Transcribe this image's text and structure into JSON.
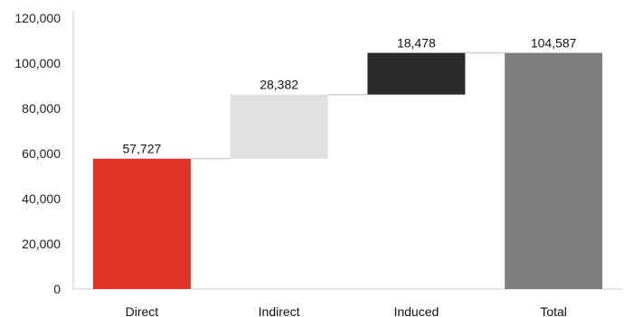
{
  "chart_data": {
    "type": "bar",
    "subtype": "waterfall",
    "title": "",
    "xlabel": "",
    "ylabel": "",
    "categories": [
      "Direct",
      "Indirect",
      "Induced",
      "Total"
    ],
    "values": [
      57727,
      28382,
      18478,
      104587
    ],
    "value_labels": [
      "57,727",
      "28,382",
      "18,478",
      "104,587"
    ],
    "is_total": [
      false,
      false,
      false,
      true
    ],
    "colors": [
      "#e03127",
      "#dfe0df",
      "#2b2b2b",
      "#7d7e7d"
    ],
    "ylim": [
      0,
      120000
    ],
    "yticks": [
      0,
      20000,
      40000,
      60000,
      80000,
      100000,
      120000
    ],
    "ytick_labels": [
      "0",
      "20,000",
      "40,000",
      "60,000",
      "80,000",
      "100,000",
      "120,000"
    ],
    "grid": false,
    "legend": "none",
    "connector_color": "#d0d0d0"
  }
}
